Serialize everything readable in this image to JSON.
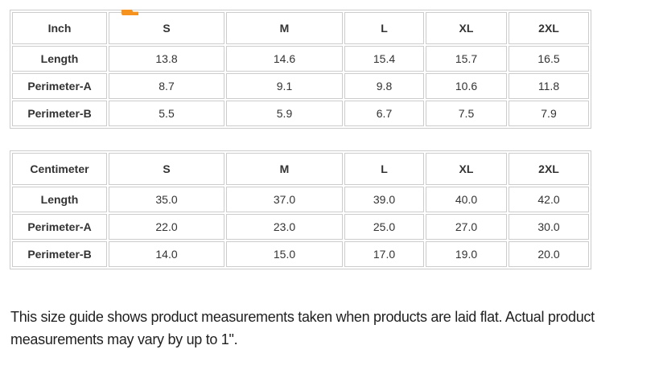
{
  "colors": {
    "accent_orange": "#f6921e",
    "table_border": "#cccccc",
    "table_text": "#333333",
    "note_text": "#212121",
    "background": "#ffffff"
  },
  "tables": [
    {
      "unit_header": "Inch",
      "size_columns": [
        "S",
        "M",
        "L",
        "XL",
        "2XL"
      ],
      "rows": [
        {
          "label": "Length",
          "values": [
            "13.8",
            "14.6",
            "15.4",
            "15.7",
            "16.5"
          ]
        },
        {
          "label": "Perimeter-A",
          "values": [
            "8.7",
            "9.1",
            "9.8",
            "10.6",
            "11.8"
          ]
        },
        {
          "label": "Perimeter-B",
          "values": [
            "5.5",
            "5.9",
            "6.7",
            "7.5",
            "7.9"
          ]
        }
      ]
    },
    {
      "unit_header": "Centimeter",
      "size_columns": [
        "S",
        "M",
        "L",
        "XL",
        "2XL"
      ],
      "rows": [
        {
          "label": "Length",
          "values": [
            "35.0",
            "37.0",
            "39.0",
            "40.0",
            "42.0"
          ]
        },
        {
          "label": "Perimeter-A",
          "values": [
            "22.0",
            "23.0",
            "25.0",
            "27.0",
            "30.0"
          ]
        },
        {
          "label": "Perimeter-B",
          "values": [
            "14.0",
            "15.0",
            "17.0",
            "19.0",
            "20.0"
          ]
        }
      ]
    }
  ],
  "footnote": "This size guide shows product measurements taken when products are laid flat. Actual product measurements may vary by up to 1\"."
}
